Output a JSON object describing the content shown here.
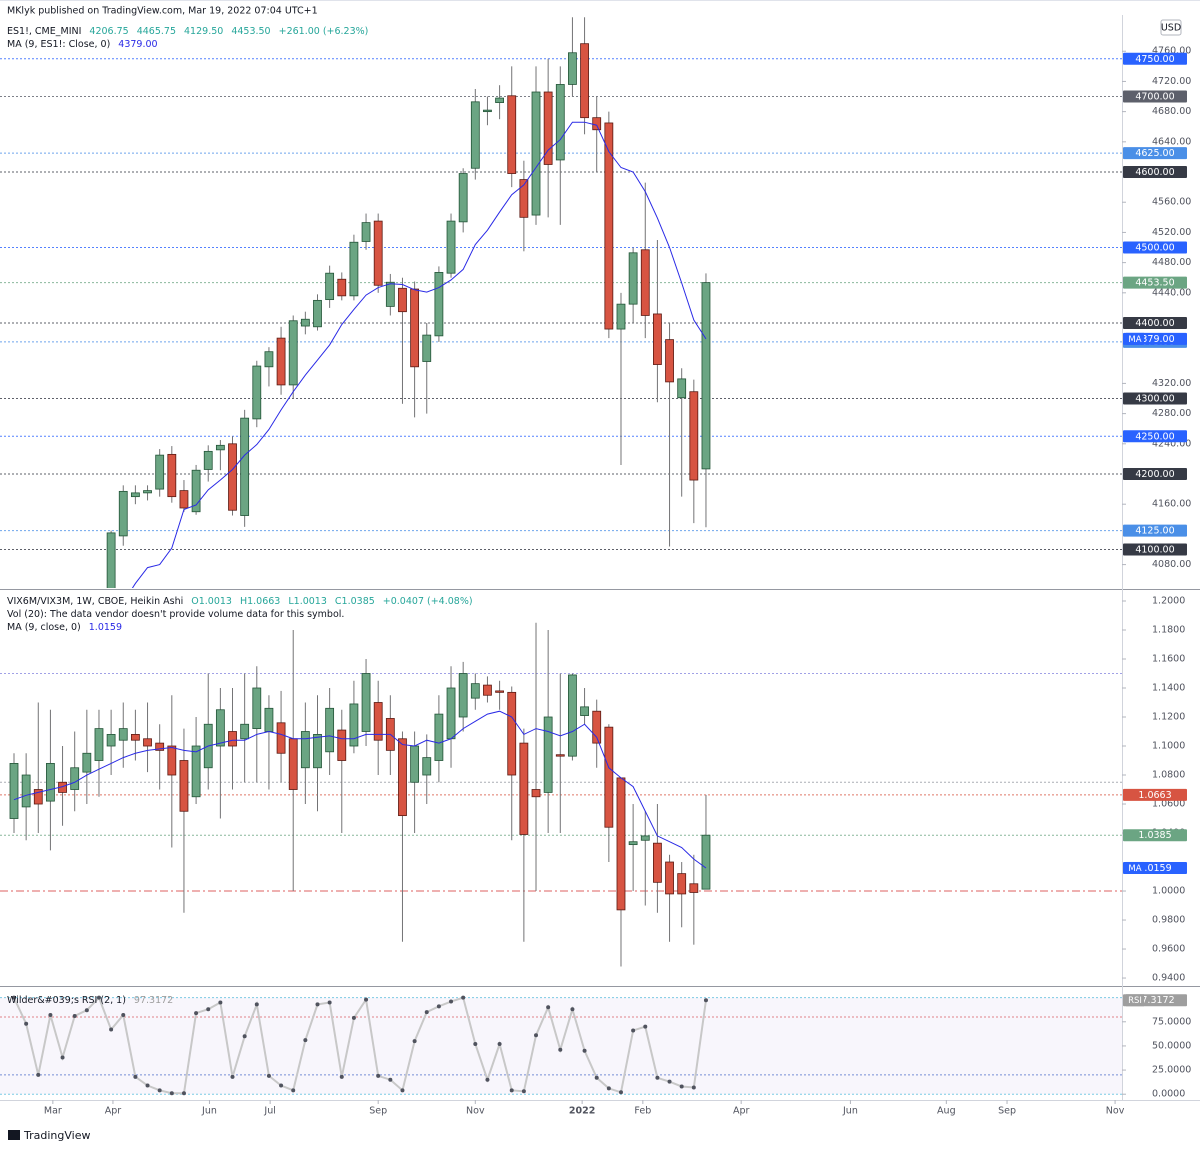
{
  "header": {
    "publisher": "MKlyk published on TradingView.com, Mar 19, 2022 07:04 UTC+1"
  },
  "footer": {
    "brand": "TradingView"
  },
  "chart_data": [
    {
      "type": "candlestick",
      "symbol": "ES1!, CME_MINI",
      "currency": "USD",
      "legend_values": [
        "4206.75",
        "4465.75",
        "4129.50",
        "4453.50",
        "+261.00 (+6.23%)"
      ],
      "up_color": "#6ba583",
      "down_color": "#d75442",
      "x": [
        8,
        9,
        10,
        11,
        12,
        13,
        14,
        15,
        16,
        17,
        18,
        19,
        20,
        21,
        22,
        23,
        24,
        25,
        26,
        27,
        28,
        29,
        30,
        31,
        32,
        33,
        34,
        35,
        36,
        37,
        38,
        39,
        40,
        41,
        42,
        43,
        44,
        45,
        46,
        47,
        48,
        49,
        50,
        51,
        52,
        53,
        54,
        55,
        56,
        57
      ],
      "open": [
        4040,
        4118,
        4170,
        4175,
        4180,
        4226,
        4178,
        4150,
        4206,
        4232,
        4240,
        4145,
        4273,
        4342,
        4380,
        4318,
        4396,
        4395,
        4431,
        4458,
        4436,
        4508,
        4535,
        4422,
        4446,
        4445,
        4349,
        4383,
        4466,
        4534,
        4605,
        4680,
        4692,
        4701,
        4590,
        4543,
        4706,
        4616,
        4716,
        4770,
        4672,
        4665,
        4392,
        4425,
        4497,
        4412,
        4378,
        4301,
        4309,
        4206.75
      ],
      "high": [
        4125,
        4185,
        4185,
        4185,
        4233,
        4237,
        4192,
        4212,
        4238,
        4245,
        4250,
        4285,
        4350,
        4368,
        4395,
        4410,
        4415,
        4438,
        4476,
        4467,
        4517,
        4545,
        4545,
        4465,
        4460,
        4455,
        4400,
        4475,
        4545,
        4605,
        4710,
        4700,
        4715,
        4740,
        4615,
        4740,
        4750,
        4740,
        4805,
        4805,
        4700,
        4680,
        4440,
        4500,
        4586,
        4510,
        4400,
        4340,
        4325,
        4465.75
      ],
      "low": [
        4035,
        4105,
        4160,
        4165,
        4170,
        4162,
        4150,
        4146,
        4190,
        4205,
        4145,
        4130,
        4262,
        4316,
        4305,
        4300,
        4385,
        4390,
        4420,
        4430,
        4430,
        4497,
        4440,
        4410,
        4293,
        4275,
        4280,
        4375,
        4460,
        4520,
        4590,
        4662,
        4670,
        4580,
        4495,
        4530,
        4540,
        4530,
        4700,
        4650,
        4600,
        4380,
        4212,
        4400,
        4380,
        4295,
        4104,
        4170,
        4135,
        4129.5
      ],
      "close": [
        4122,
        4177,
        4175,
        4178,
        4225,
        4170,
        4155,
        4205,
        4230,
        4238,
        4152,
        4274,
        4343,
        4362,
        4318,
        4403,
        4405,
        4430,
        4466,
        4436,
        4507,
        4533,
        4450,
        4454,
        4415,
        4342,
        4384,
        4467,
        4535,
        4598,
        4693,
        4682,
        4698,
        4598,
        4540,
        4706,
        4610,
        4716,
        4758,
        4672,
        4656,
        4392,
        4425,
        4493,
        4410,
        4345,
        4322,
        4326,
        4192,
        4453.5
      ],
      "ma": {
        "name": "MA (9, ES1!: Close, 0)",
        "value_label": "4379.00",
        "tag": "MA",
        "color": "#2a2ae6",
        "values": [
          4010,
          4030,
          4055,
          4076,
          4080,
          4102,
          4153,
          4159,
          4179,
          4192,
          4206,
          4225,
          4239,
          4259,
          4285,
          4309,
          4331,
          4351,
          4371,
          4398,
          4418,
          4437,
          4447,
          4452,
          4451,
          4444,
          4441,
          4447,
          4457,
          4471,
          4504,
          4523,
          4547,
          4570,
          4583,
          4606,
          4629,
          4643,
          4666,
          4666,
          4662,
          4627,
          4606,
          4600,
          4574,
          4539,
          4500,
          4453,
          4404,
          4379
        ]
      },
      "ylim": [
        4049,
        4808
      ],
      "yticks": [
        {
          "value": 4080,
          "label": "4080.00"
        },
        {
          "value": 4160,
          "label": "4160.00"
        },
        {
          "value": 4240,
          "label": "4240.00"
        },
        {
          "value": 4280,
          "label": "4280.00"
        },
        {
          "value": 4320,
          "label": "4320.00"
        },
        {
          "value": 4440,
          "label": "4440.00"
        },
        {
          "value": 4480,
          "label": "4480.00"
        },
        {
          "value": 4520,
          "label": "4520.00"
        },
        {
          "value": 4560,
          "label": "4560.00"
        },
        {
          "value": 4640,
          "label": "4640.00"
        },
        {
          "value": 4680,
          "label": "4680.00"
        },
        {
          "value": 4720,
          "label": "4720.00"
        },
        {
          "value": 4760,
          "label": "4760.00"
        }
      ],
      "levels": [
        {
          "value": 4750,
          "label": "4750.00",
          "color": "#2962ff"
        },
        {
          "value": 4700,
          "label": "4700.00",
          "color": "#5d606b"
        },
        {
          "value": 4625,
          "label": "4625.00",
          "color": "#4a8fe7"
        },
        {
          "value": 4600,
          "label": "4600.00",
          "color": "#363a45"
        },
        {
          "value": 4500,
          "label": "4500.00",
          "color": "#2962ff"
        },
        {
          "value": 4453.5,
          "label": "4453.50",
          "color": "#6ba583"
        },
        {
          "value": 4400,
          "label": "4400.00",
          "color": "#363a45"
        },
        {
          "value": 4375,
          "label": "4375.00",
          "color": "#4a8fe7"
        },
        {
          "value": 4300,
          "label": "4300.00",
          "color": "#363a45"
        },
        {
          "value": 4250,
          "label": "4250.00",
          "color": "#2962ff"
        },
        {
          "value": 4200,
          "label": "4200.00",
          "color": "#363a45"
        },
        {
          "value": 4125,
          "label": "4125.00",
          "color": "#4a8fe7"
        },
        {
          "value": 4100,
          "label": "4100.00",
          "color": "#363a45"
        }
      ]
    },
    {
      "type": "candlestick",
      "symbol": "VIX6M/VIX3M, 1W, CBOE, Heikin Ashi",
      "legend_values": [
        "O1.0013",
        "H1.0663",
        "L1.0013",
        "C1.0385",
        "+0.0407 (+4.08%)"
      ],
      "note": "Vol (20): The data vendor doesn't provide volume data for this symbol.",
      "up_color": "#6ba583",
      "down_color": "#d75442",
      "x": [
        0,
        1,
        2,
        3,
        4,
        5,
        6,
        7,
        8,
        9,
        10,
        11,
        12,
        13,
        14,
        15,
        16,
        17,
        18,
        19,
        20,
        21,
        22,
        23,
        24,
        25,
        26,
        27,
        28,
        29,
        30,
        31,
        32,
        33,
        34,
        35,
        36,
        37,
        38,
        39,
        40,
        41,
        42,
        43,
        44,
        45,
        46,
        47,
        48,
        49,
        50,
        51,
        52,
        53,
        54,
        55,
        56,
        57
      ],
      "open": [
        1.05,
        1.058,
        1.07,
        1.062,
        1.075,
        1.07,
        1.082,
        1.09,
        1.1,
        1.104,
        1.108,
        1.105,
        1.102,
        1.1,
        1.09,
        1.065,
        1.085,
        1.1,
        1.11,
        1.105,
        1.112,
        1.11,
        1.116,
        1.105,
        1.085,
        1.085,
        1.096,
        1.111,
        1.1,
        1.11,
        1.13,
        1.119,
        1.105,
        1.075,
        1.08,
        1.09,
        1.105,
        1.12,
        1.133,
        1.142,
        1.138,
        1.137,
        1.102,
        1.07,
        1.068,
        1.094,
        1.093,
        1.121,
        1.124,
        1.113,
        1.078,
        1.032,
        1.035,
        1.033,
        1.02,
        1.012,
        1.005,
        1.0013
      ],
      "high": [
        1.095,
        1.095,
        1.13,
        1.125,
        1.1,
        1.11,
        1.125,
        1.125,
        1.125,
        1.13,
        1.125,
        1.13,
        1.115,
        1.135,
        1.112,
        1.12,
        1.15,
        1.14,
        1.14,
        1.15,
        1.155,
        1.135,
        1.138,
        1.18,
        1.13,
        1.135,
        1.14,
        1.125,
        1.145,
        1.16,
        1.145,
        1.135,
        1.11,
        1.11,
        1.108,
        1.135,
        1.155,
        1.158,
        1.15,
        1.148,
        1.145,
        1.141,
        1.112,
        1.185,
        1.18,
        1.15,
        1.15,
        1.14,
        1.132,
        1.115,
        1.078,
        1.06,
        1.055,
        1.06,
        1.025,
        1.02,
        1.025,
        1.0663
      ],
      "low": [
        1.04,
        1.035,
        1.04,
        1.028,
        1.045,
        1.055,
        1.06,
        1.065,
        1.08,
        1.085,
        1.09,
        1.082,
        1.07,
        1.03,
        0.985,
        1.06,
        1.07,
        1.05,
        1.07,
        1.075,
        1.075,
        1.07,
        1.075,
        1.0,
        1.06,
        1.055,
        1.08,
        1.04,
        1.095,
        1.1,
        1.08,
        1.08,
        0.965,
        1.04,
        1.06,
        1.075,
        1.085,
        1.11,
        1.125,
        1.13,
        1.125,
        1.035,
        0.965,
        1.0,
        1.04,
        1.04,
        1.09,
        1.115,
        1.085,
        1.02,
        0.948,
        1.0,
        0.99,
        0.985,
        0.965,
        0.975,
        0.963,
        1.0013
      ],
      "close": [
        1.088,
        1.08,
        1.06,
        1.088,
        1.068,
        1.085,
        1.095,
        1.112,
        1.108,
        1.112,
        1.104,
        1.1,
        1.097,
        1.08,
        1.055,
        1.1,
        1.115,
        1.125,
        1.1,
        1.115,
        1.14,
        1.126,
        1.095,
        1.07,
        1.11,
        1.108,
        1.126,
        1.09,
        1.129,
        1.15,
        1.104,
        1.097,
        1.052,
        1.1,
        1.092,
        1.122,
        1.14,
        1.15,
        1.143,
        1.135,
        1.137,
        1.08,
        1.039,
        1.065,
        1.12,
        1.093,
        1.149,
        1.127,
        1.102,
        1.044,
        0.987,
        1.034,
        1.038,
        1.006,
        0.998,
        0.998,
        0.999,
        1.0385
      ],
      "ma": {
        "name": "MA (9, close, 0)",
        "value_label": "1.0159",
        "tag": "MA",
        "color": "#2a2ae6",
        "values": [
          1.063,
          1.066,
          1.068,
          1.07,
          1.072,
          1.075,
          1.08,
          1.084,
          1.088,
          1.092,
          1.095,
          1.097,
          1.098,
          1.099,
          1.097,
          1.096,
          1.1,
          1.102,
          1.104,
          1.104,
          1.108,
          1.11,
          1.108,
          1.105,
          1.105,
          1.106,
          1.107,
          1.105,
          1.105,
          1.108,
          1.108,
          1.108,
          1.101,
          1.1,
          1.104,
          1.102,
          1.105,
          1.112,
          1.117,
          1.122,
          1.124,
          1.12,
          1.108,
          1.112,
          1.11,
          1.107,
          1.11,
          1.115,
          1.106,
          1.085,
          1.078,
          1.072,
          1.055,
          1.038,
          1.034,
          1.03,
          1.022,
          1.0159
        ]
      },
      "ylim": [
        0.9352,
        1.2062
      ],
      "yticks": [
        {
          "value": 0.94,
          "label": "0.9400"
        },
        {
          "value": 0.96,
          "label": "0.9600"
        },
        {
          "value": 0.98,
          "label": "0.9800"
        },
        {
          "value": 1,
          "label": "1.0000"
        },
        {
          "value": 1.04,
          "label": "1.0400"
        },
        {
          "value": 1.06,
          "label": "1.0600"
        },
        {
          "value": 1.08,
          "label": "1.0800"
        },
        {
          "value": 1.1,
          "label": "1.1000"
        },
        {
          "value": 1.12,
          "label": "1.1200"
        },
        {
          "value": 1.14,
          "label": "1.1400"
        },
        {
          "value": 1.16,
          "label": "1.1600"
        },
        {
          "value": 1.18,
          "label": "1.1800"
        },
        {
          "value": 1.2,
          "label": "1.2000"
        }
      ],
      "levels": [
        {
          "value": 1.15,
          "color": "#8a8ae0"
        },
        {
          "value": 1.075,
          "color": "#9598a1"
        },
        {
          "value": 1.0663,
          "label": "1.0663",
          "color": "#d75442"
        },
        {
          "value": 1.0385,
          "label": "1.0385",
          "color": "#6ba583"
        },
        {
          "value": 1.0,
          "color": "#d63a3a"
        }
      ]
    },
    {
      "type": "line",
      "name": "Wilder&#039;s RSI (2, 1)",
      "value_label": "97.3172",
      "tag": "RSI",
      "color": "#c8c8c8",
      "x": [
        0,
        1,
        2,
        3,
        4,
        5,
        6,
        7,
        8,
        9,
        10,
        11,
        12,
        13,
        14,
        15,
        16,
        17,
        18,
        19,
        20,
        21,
        22,
        23,
        24,
        25,
        26,
        27,
        28,
        29,
        30,
        31,
        32,
        33,
        34,
        35,
        36,
        37,
        38,
        39,
        40,
        41,
        42,
        43,
        44,
        45,
        46,
        47,
        48,
        49,
        50,
        51,
        52,
        53,
        54,
        55,
        56,
        57
      ],
      "values": [
        100,
        73,
        20,
        82,
        38,
        81,
        87,
        100,
        67,
        82,
        18,
        9,
        4,
        1,
        1,
        84,
        88,
        95,
        18,
        60,
        93,
        19,
        9,
        4,
        56,
        93,
        95,
        18,
        79,
        98,
        19,
        15,
        4,
        55,
        85,
        91,
        96,
        100,
        52,
        15,
        52,
        4,
        3,
        61,
        90,
        46,
        88,
        45,
        17,
        6,
        2,
        66,
        70,
        17,
        13,
        8,
        7,
        97.3172
      ],
      "ylim": [
        -6,
        110
      ],
      "yticks": [
        {
          "value": 0,
          "label": "0.0000"
        },
        {
          "value": 25,
          "label": "25.0000"
        },
        {
          "value": 50,
          "label": "50.0000"
        },
        {
          "value": 75,
          "label": "75.0000"
        }
      ],
      "levels": [
        {
          "value": 100,
          "color": "#5bc0de"
        },
        {
          "value": 80,
          "color": "#e06666"
        },
        {
          "value": 20,
          "color": "#5577cc"
        },
        {
          "value": 0,
          "color": "#5bc0de"
        }
      ],
      "xlim": [
        -1.153,
        91.27
      ],
      "xticks": [
        {
          "value": 3.2,
          "label": "Mar"
        },
        {
          "value": 8.15,
          "label": "Apr"
        },
        {
          "value": 16.1,
          "label": "Jun"
        },
        {
          "value": 21.1,
          "label": "Jul"
        },
        {
          "value": 30,
          "label": "Sep"
        },
        {
          "value": 38,
          "label": "Nov"
        },
        {
          "value": 46.8,
          "label": "2022"
        },
        {
          "value": 51.8,
          "label": "Feb"
        },
        {
          "value": 59.9,
          "label": "Apr"
        },
        {
          "value": 68.9,
          "label": "Jun"
        },
        {
          "value": 76.8,
          "label": "Aug"
        },
        {
          "value": 81.8,
          "label": "Sep"
        },
        {
          "value": 90.7,
          "label": "Nov"
        }
      ]
    }
  ]
}
